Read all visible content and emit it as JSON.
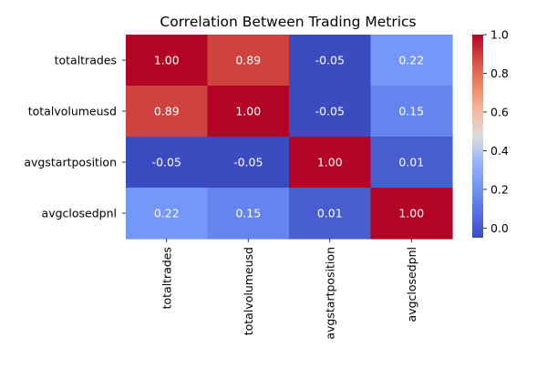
{
  "chart_data": {
    "type": "heatmap",
    "title": "Correlation Between Trading Metrics",
    "x_categories": [
      "totaltrades",
      "totalvolumeusd",
      "avgstartposition",
      "avgclosedpnl"
    ],
    "y_categories": [
      "totaltrades",
      "totalvolumeusd",
      "avgstartposition",
      "avgclosedpnl"
    ],
    "values": [
      [
        1.0,
        0.89,
        -0.05,
        0.22
      ],
      [
        0.89,
        1.0,
        -0.05,
        0.15
      ],
      [
        -0.05,
        -0.05,
        1.0,
        0.01
      ],
      [
        0.22,
        0.15,
        0.01,
        1.0
      ]
    ],
    "value_format": "0.00",
    "colormap": "coolwarm",
    "colorbar": {
      "range": [
        -0.05,
        1.0
      ],
      "ticks": [
        0.0,
        0.2,
        0.4,
        0.6,
        0.8,
        1.0
      ],
      "tick_labels": [
        "0.0",
        "0.2",
        "0.4",
        "0.6",
        "0.8",
        "1.0"
      ]
    },
    "annotated": true,
    "grid": false,
    "xlabel": "",
    "ylabel": ""
  }
}
